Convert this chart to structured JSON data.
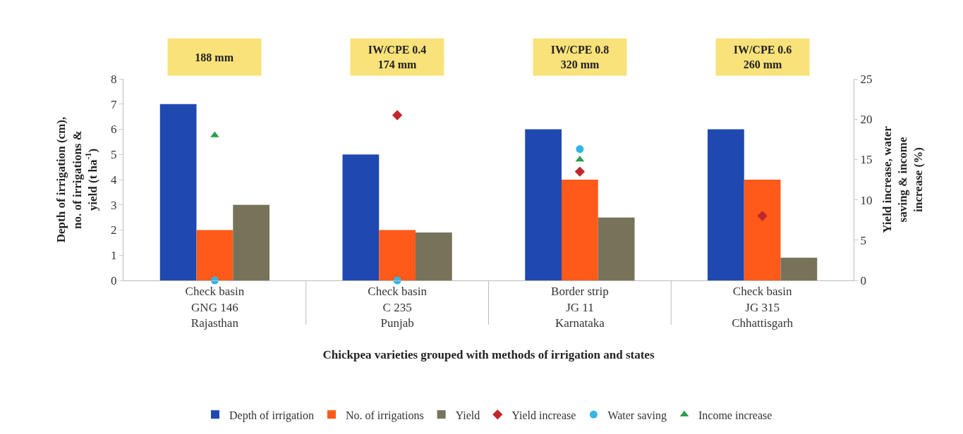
{
  "chart_data": {
    "type": "bar",
    "xlabel": "Chickpea varieties grouped with methods of irrigation and states",
    "ylabel": "Depth of irrigation (cm),\nno. of irrigations &\nyield (t ha$^{-1}$)",
    "y2label": "Yield increase, water\nsaving & income\nincrease (%)",
    "categories": [
      "Check basin\nGNG 146\nRajasthan",
      "Check basin\nC 235\nPunjab",
      "Border strip\nJG 11\nKarnataka",
      "Check basin\nJG 315\nChhattisgarh"
    ],
    "annotations": [
      "188 mm",
      "IW/CPE 0.4\n174 mm",
      "IW/CPE 0.8\n320 mm",
      "IW/CPE 0.6\n260 mm"
    ],
    "series": [
      {
        "name": "Depth of irrigation",
        "color": "#1f48b0",
        "values": [
          7,
          5,
          6,
          6
        ]
      },
      {
        "name": "No. of irrigations",
        "color": "#ff5a1a",
        "values": [
          2,
          2,
          4,
          4
        ]
      },
      {
        "name": "Yield",
        "color": "#77735a",
        "values": [
          3,
          1.9,
          2.5,
          0.9
        ]
      },
      {
        "name": "Yield increase",
        "type": "scatter",
        "axis": "y2",
        "marker": "diamond",
        "color": "#c0272d",
        "values": [
          null,
          20.5,
          13.5,
          8
        ]
      },
      {
        "name": "Water saving",
        "type": "scatter",
        "axis": "y2",
        "marker": "circle",
        "color": "#33b5e5",
        "values": [
          0,
          0,
          16.3,
          null
        ]
      },
      {
        "name": "Income increase",
        "type": "scatter",
        "axis": "y2",
        "marker": "triangle",
        "color": "#2e9e4f",
        "values": [
          18,
          null,
          15,
          null
        ]
      }
    ],
    "ylim": [
      0,
      8
    ],
    "yticks": [
      0,
      1,
      2,
      3,
      4,
      5,
      6,
      7,
      8
    ],
    "y2lim": [
      0,
      25
    ],
    "y2ticks": [
      0,
      5,
      10,
      15,
      20,
      25
    ],
    "legend": "bottom",
    "grid": false
  }
}
